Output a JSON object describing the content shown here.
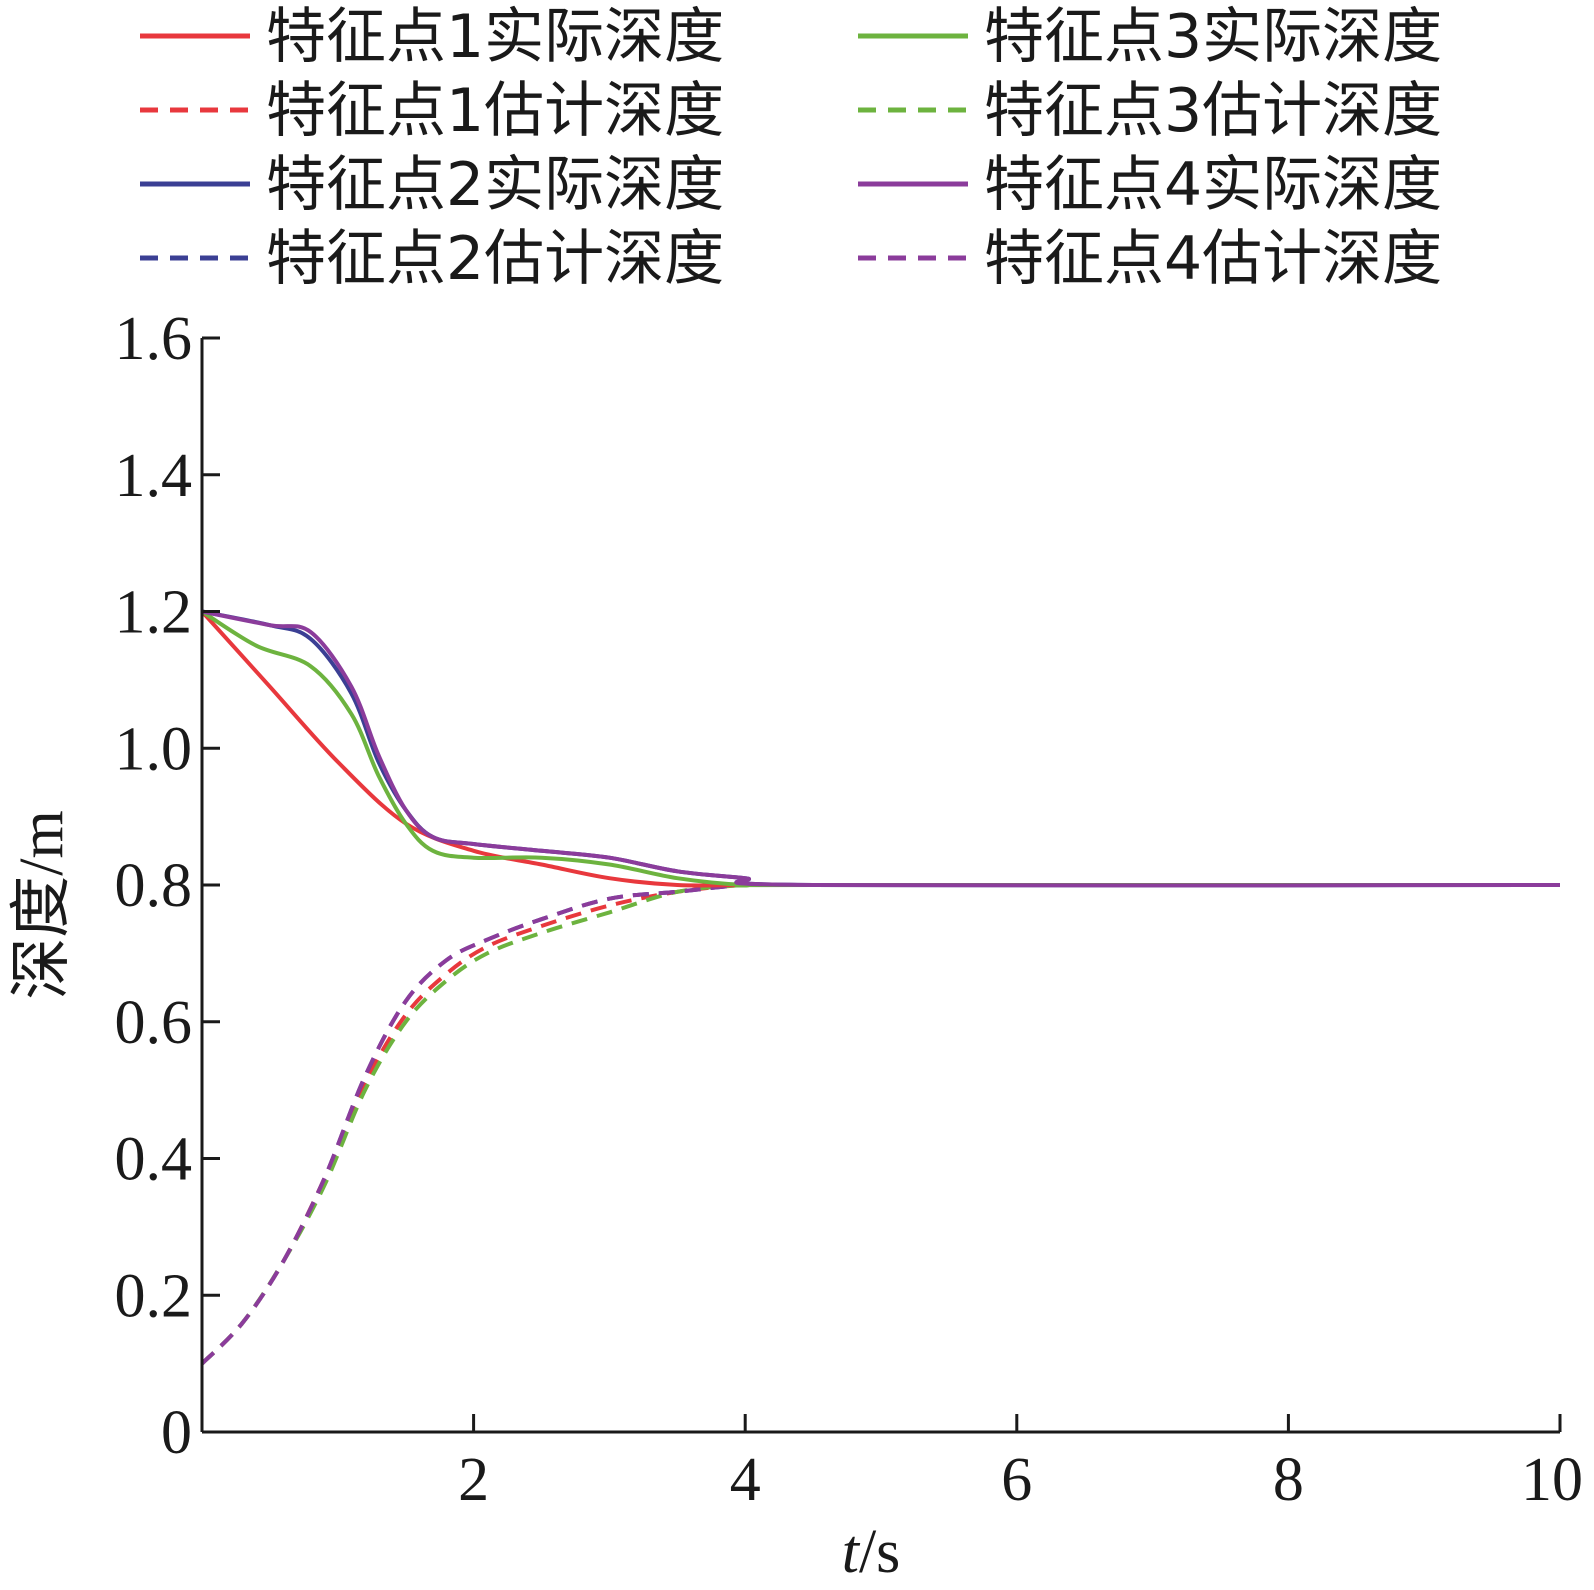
{
  "chart_data": {
    "type": "line",
    "title": "",
    "xlabel_italic": "t",
    "xlabel_unit": "/s",
    "ylabel": "深度/m",
    "xlim": [
      0,
      10
    ],
    "ylim": [
      0,
      1.6
    ],
    "x_ticks": [
      2,
      4,
      6,
      8,
      10
    ],
    "y_ticks": [
      0,
      0.2,
      0.4,
      0.6,
      0.8,
      1.0,
      1.2,
      1.4,
      1.6
    ],
    "y_tick_labels": [
      "0",
      "0.2",
      "0.4",
      "0.6",
      "0.8",
      "1.0",
      "1.2",
      "1.4",
      "1.6"
    ],
    "grid": false,
    "legend_position": "top",
    "series": [
      {
        "name": "特征点1实际深度",
        "color": "#e8383d",
        "dash": false,
        "x": [
          0,
          0.5,
          1.0,
          1.5,
          2.0,
          2.5,
          3.0,
          3.5,
          4.0,
          4.5,
          10
        ],
        "y": [
          1.2,
          1.09,
          0.98,
          0.89,
          0.85,
          0.83,
          0.81,
          0.8,
          0.8,
          0.8,
          0.8
        ]
      },
      {
        "name": "特征点1估计深度",
        "color": "#e8383d",
        "dash": true,
        "x": [
          0,
          0.3,
          0.6,
          0.9,
          1.2,
          1.5,
          1.8,
          2.1,
          2.5,
          3.0,
          3.5,
          4.0,
          4.5,
          10
        ],
        "y": [
          0.1,
          0.16,
          0.25,
          0.37,
          0.51,
          0.61,
          0.67,
          0.71,
          0.74,
          0.77,
          0.79,
          0.8,
          0.8,
          0.8
        ]
      },
      {
        "name": "特征点2实际深度",
        "color": "#3b3f94",
        "dash": false,
        "x": [
          0,
          0.5,
          0.8,
          1.1,
          1.3,
          1.5,
          1.7,
          2.0,
          2.5,
          3.0,
          3.5,
          4.0,
          4.5,
          10
        ],
        "y": [
          1.2,
          1.18,
          1.16,
          1.08,
          0.98,
          0.91,
          0.87,
          0.86,
          0.85,
          0.84,
          0.82,
          0.81,
          0.8,
          0.8
        ]
      },
      {
        "name": "特征点2估计深度",
        "color": "#3b3f94",
        "dash": true,
        "x": [
          0,
          0.3,
          0.6,
          0.9,
          1.2,
          1.5,
          1.8,
          2.1,
          2.5,
          3.0,
          3.5,
          4.0,
          4.5,
          10
        ],
        "y": [
          0.1,
          0.16,
          0.25,
          0.37,
          0.52,
          0.63,
          0.69,
          0.72,
          0.75,
          0.78,
          0.79,
          0.8,
          0.8,
          0.8
        ]
      },
      {
        "name": "特征点3实际深度",
        "color": "#6db33f",
        "dash": false,
        "x": [
          0,
          0.4,
          0.8,
          1.1,
          1.3,
          1.5,
          1.7,
          2.0,
          2.5,
          3.0,
          3.5,
          4.0,
          4.5,
          10
        ],
        "y": [
          1.2,
          1.15,
          1.12,
          1.05,
          0.96,
          0.89,
          0.85,
          0.84,
          0.84,
          0.83,
          0.81,
          0.8,
          0.8,
          0.8
        ]
      },
      {
        "name": "特征点3估计深度",
        "color": "#6db33f",
        "dash": true,
        "x": [
          0,
          0.3,
          0.6,
          0.9,
          1.2,
          1.5,
          1.8,
          2.1,
          2.5,
          3.0,
          3.5,
          4.0,
          4.5,
          10
        ],
        "y": [
          0.1,
          0.16,
          0.25,
          0.36,
          0.5,
          0.6,
          0.66,
          0.7,
          0.73,
          0.76,
          0.79,
          0.8,
          0.8,
          0.8
        ]
      },
      {
        "name": "特征点4实际深度",
        "color": "#8b3c9b",
        "dash": false,
        "x": [
          0,
          0.5,
          0.8,
          1.1,
          1.3,
          1.5,
          1.7,
          2.0,
          2.5,
          3.0,
          3.5,
          4.0,
          4.5,
          10
        ],
        "y": [
          1.2,
          1.18,
          1.17,
          1.09,
          0.99,
          0.91,
          0.87,
          0.86,
          0.85,
          0.84,
          0.82,
          0.81,
          0.8,
          0.8
        ]
      },
      {
        "name": "特征点4估计深度",
        "color": "#8b3c9b",
        "dash": true,
        "x": [
          0,
          0.3,
          0.6,
          0.9,
          1.2,
          1.5,
          1.8,
          2.1,
          2.5,
          3.0,
          3.5,
          4.0,
          4.5,
          10
        ],
        "y": [
          0.1,
          0.16,
          0.25,
          0.37,
          0.52,
          0.63,
          0.69,
          0.72,
          0.75,
          0.78,
          0.79,
          0.8,
          0.8,
          0.8
        ]
      }
    ]
  }
}
